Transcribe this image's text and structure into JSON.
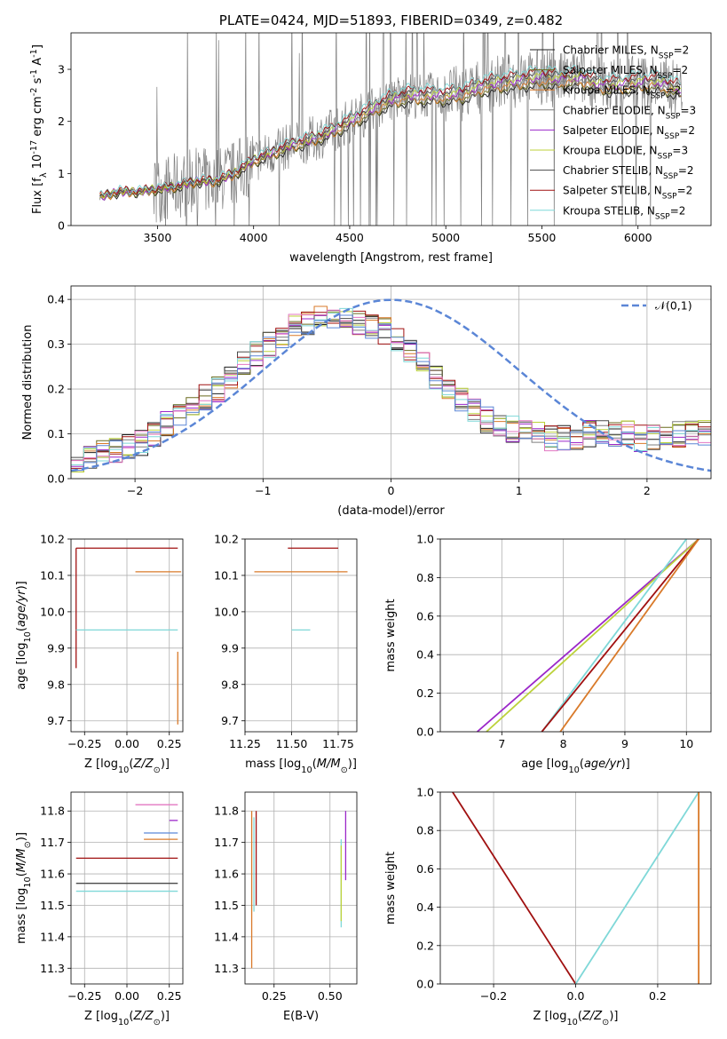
{
  "chart_data": [
    {
      "type": "line",
      "id": "spectrum",
      "title": "PLATE=0424, MJD=51893, FIBERID=0349, z=0.482",
      "xlabel": "wavelength [Angstrom, rest frame]",
      "ylabel": "Flux [f$_\\lambda$ 10$^{-17}$ erg cm$^{-2}$ s$^{-1}$ A$^{-1}$]",
      "xlim": [
        3050,
        6380
      ],
      "ylim": [
        0,
        3.7
      ],
      "xticks": [
        3500,
        4000,
        4500,
        5000,
        5500,
        6000
      ],
      "yticks": [
        0,
        1,
        2,
        3
      ],
      "data_color": "#808080",
      "data_x_range": [
        3200,
        6230
      ],
      "continuum_points": [
        [
          3200,
          0.55
        ],
        [
          3300,
          0.65
        ],
        [
          3400,
          0.65
        ],
        [
          3500,
          0.7
        ],
        [
          3600,
          0.75
        ],
        [
          3700,
          0.85
        ],
        [
          3800,
          0.85
        ],
        [
          3900,
          1.0
        ],
        [
          4000,
          1.25
        ],
        [
          4100,
          1.4
        ],
        [
          4200,
          1.55
        ],
        [
          4300,
          1.65
        ],
        [
          4400,
          1.8
        ],
        [
          4500,
          2.0
        ],
        [
          4600,
          2.2
        ],
        [
          4700,
          2.4
        ],
        [
          4800,
          2.5
        ],
        [
          4900,
          2.5
        ],
        [
          5000,
          2.5
        ],
        [
          5100,
          2.55
        ],
        [
          5200,
          2.7
        ],
        [
          5300,
          2.75
        ],
        [
          5400,
          2.8
        ],
        [
          5500,
          2.85
        ],
        [
          5600,
          2.8
        ],
        [
          5700,
          2.85
        ],
        [
          5800,
          2.7
        ],
        [
          5900,
          2.7
        ],
        [
          6000,
          2.75
        ],
        [
          6100,
          2.75
        ],
        [
          6230,
          2.6
        ]
      ],
      "legend_position": "upper right",
      "series": [
        {
          "name": "Chabrier MILES, N$_{SSP}$=2",
          "color": "#1f1f1f"
        },
        {
          "name": "Salpeter MILES, N$_{SSP}$=2",
          "color": "#6b6b1f"
        },
        {
          "name": "Kroupa MILES, N$_{SSP}$=2",
          "color": "#d97a2a"
        },
        {
          "name": "Chabrier ELODIE, N$_{SSP}$=3",
          "color": "#7f7f7f"
        },
        {
          "name": "Salpeter ELODIE, N$_{SSP}$=2",
          "color": "#9b27c9"
        },
        {
          "name": "Kroupa ELODIE, N$_{SSP}$=3",
          "color": "#bcd23a"
        },
        {
          "name": "Chabrier STELIB, N$_{SSP}$=2",
          "color": "#4a4a4a"
        },
        {
          "name": "Salpeter STELIB, N$_{SSP}$=2",
          "color": "#a01010"
        },
        {
          "name": "Kroupa STELIB, N$_{SSP}$=2",
          "color": "#7fd8d8"
        }
      ]
    },
    {
      "type": "histogram",
      "id": "residuals",
      "xlabel": "(data-model)/error",
      "ylabel": "Normed distribution",
      "xlim": [
        -2.5,
        2.5
      ],
      "ylim": [
        0,
        0.43
      ],
      "xticks": [
        -2,
        -1,
        0,
        1,
        2
      ],
      "yticks": [
        0.0,
        0.1,
        0.2,
        0.3,
        0.4
      ],
      "grid": true,
      "legend_position": "upper right",
      "reference_curve": {
        "name": "$\\mathcal{N}(0,1)$",
        "color": "#5b86d6",
        "style": "dashed"
      },
      "bin_width": 0.1,
      "bin_start": -2.5,
      "approx_series_envelope": [
        0.04,
        0.05,
        0.06,
        0.06,
        0.07,
        0.08,
        0.1,
        0.12,
        0.14,
        0.16,
        0.18,
        0.2,
        0.23,
        0.26,
        0.28,
        0.3,
        0.32,
        0.34,
        0.35,
        0.36,
        0.36,
        0.36,
        0.35,
        0.34,
        0.33,
        0.31,
        0.28,
        0.26,
        0.23,
        0.2,
        0.18,
        0.15,
        0.13,
        0.12,
        0.11,
        0.1,
        0.1,
        0.09,
        0.09,
        0.09,
        0.1,
        0.1,
        0.1,
        0.1,
        0.09,
        0.09,
        0.1,
        0.1,
        0.1,
        0.1
      ]
    },
    {
      "type": "errorbar",
      "id": "age-vs-Z",
      "xlabel": "Z [log$_{10}$($Z/Z_\\odot$)]",
      "ylabel": "age  [log$_{10}$($age/yr$)]",
      "xlim": [
        -0.33,
        0.33
      ],
      "ylim": [
        9.67,
        10.2
      ],
      "xticks": [
        -0.25,
        0.0,
        0.25
      ],
      "yticks": [
        9.7,
        9.8,
        9.9,
        10.0,
        10.1,
        10.2
      ],
      "grid": true,
      "points": [
        {
          "x": -0.3,
          "y": 10.175,
          "xerr": [
            0,
            0.6
          ],
          "yerr": [
            0.33,
            0
          ],
          "color": "#a01010"
        },
        {
          "x": 0.05,
          "y": 10.11,
          "xerr": [
            0,
            0.27
          ],
          "color": "#d97a2a"
        },
        {
          "x": -0.3,
          "y": 9.95,
          "xerr": [
            0,
            0.6
          ],
          "color": "#7fd8d8"
        },
        {
          "x": 0.3,
          "y": 9.89,
          "yerr": [
            0.2,
            0
          ],
          "color": "#d97a2a"
        }
      ]
    },
    {
      "type": "errorbar",
      "id": "age-vs-mass",
      "xlabel": "mass [log$_{10}$($M/M_\\odot$)]",
      "ylabel": "",
      "xlim": [
        11.25,
        11.85
      ],
      "ylim": [
        9.67,
        10.2
      ],
      "xticks": [
        11.25,
        11.5,
        11.75
      ],
      "yticks": [
        9.7,
        9.8,
        9.9,
        10.0,
        10.1,
        10.2
      ],
      "grid": true,
      "points": [
        {
          "x": 11.55,
          "y": 10.175,
          "xerr": [
            0.07,
            0.2
          ],
          "color": "#a01010"
        },
        {
          "x": 11.3,
          "y": 10.11,
          "xerr": [
            0,
            0.5
          ],
          "color": "#d97a2a"
        },
        {
          "x": 11.55,
          "y": 9.95,
          "xerr": [
            0.05,
            0.05
          ],
          "color": "#7fd8d8"
        }
      ]
    },
    {
      "type": "line",
      "id": "cumulative-age",
      "xlabel": "age  [log$_{10}$($age/yr$)]",
      "ylabel": "mass weight",
      "xlim": [
        6.0,
        10.4
      ],
      "ylim": [
        0,
        1
      ],
      "xticks": [
        7,
        8,
        9,
        10
      ],
      "yticks": [
        0.0,
        0.2,
        0.4,
        0.6,
        0.8,
        1.0
      ],
      "grid": true,
      "series": [
        {
          "color": "#9b27c9",
          "x": [
            6.6,
            10.2
          ],
          "y": [
            0,
            1
          ]
        },
        {
          "color": "#bcd23a",
          "x": [
            6.75,
            10.2
          ],
          "y": [
            0,
            1
          ]
        },
        {
          "color": "#7fd8d8",
          "x": [
            7.65,
            10.0
          ],
          "y": [
            0,
            1
          ]
        },
        {
          "color": "#a01010",
          "x": [
            7.65,
            10.2
          ],
          "y": [
            0,
            1
          ]
        },
        {
          "color": "#d97a2a",
          "x": [
            7.95,
            10.2
          ],
          "y": [
            0,
            1
          ]
        }
      ]
    },
    {
      "type": "errorbar",
      "id": "mass-vs-Z",
      "xlabel": "Z [log$_{10}$($Z/Z_\\odot$)]",
      "ylabel": "mass [log$_{10}$($M/M_\\odot$)]",
      "xlim": [
        -0.33,
        0.33
      ],
      "ylim": [
        11.25,
        11.86
      ],
      "xticks": [
        -0.25,
        0.0,
        0.25
      ],
      "yticks": [
        11.3,
        11.4,
        11.5,
        11.6,
        11.7,
        11.8
      ],
      "grid": true,
      "points": [
        {
          "x": 0.05,
          "y": 11.82,
          "xerr": [
            0,
            0.25
          ],
          "color": "#e377c2"
        },
        {
          "x": 0.25,
          "y": 11.77,
          "xerr": [
            0,
            0.05
          ],
          "color": "#9b27c9"
        },
        {
          "x": 0.1,
          "y": 11.73,
          "xerr": [
            0,
            0.2
          ],
          "color": "#5b86d6"
        },
        {
          "x": 0.1,
          "y": 11.71,
          "xerr": [
            0,
            0.2
          ],
          "color": "#d97a2a"
        },
        {
          "x": -0.3,
          "y": 11.65,
          "xerr": [
            0,
            0.6
          ],
          "color": "#a01010"
        },
        {
          "x": -0.3,
          "y": 11.57,
          "xerr": [
            0,
            0.6
          ],
          "color": "#4a4a4a"
        },
        {
          "x": -0.3,
          "y": 11.545,
          "xerr": [
            0,
            0.6
          ],
          "color": "#7fd8d8"
        }
      ]
    },
    {
      "type": "errorbar",
      "id": "mass-vs-EBV",
      "xlabel": "E(B-V)",
      "ylabel": "",
      "xlim": [
        0.12,
        0.62
      ],
      "ylim": [
        11.25,
        11.86
      ],
      "xticks": [
        0.25,
        0.5
      ],
      "yticks": [
        11.3,
        11.4,
        11.5,
        11.6,
        11.7,
        11.8
      ],
      "grid": true,
      "points": [
        {
          "x": 0.15,
          "y": 11.6,
          "yerr": [
            0.3,
            0.2
          ],
          "color": "#d97a2a"
        },
        {
          "x": 0.17,
          "y": 11.65,
          "yerr": [
            0.15,
            0.15
          ],
          "color": "#a01010"
        },
        {
          "x": 0.16,
          "y": 11.63,
          "yerr": [
            0.15,
            0.15
          ],
          "color": "#7fd8d8"
        },
        {
          "x": 0.55,
          "y": 11.57,
          "yerr": [
            0.14,
            0.14
          ],
          "color": "#7fd8d8"
        },
        {
          "x": 0.55,
          "y": 11.57,
          "yerr": [
            0.12,
            0.12
          ],
          "color": "#bcd23a"
        },
        {
          "x": 0.57,
          "y": 11.68,
          "yerr": [
            0.1,
            0.12
          ],
          "color": "#9b27c9"
        }
      ]
    },
    {
      "type": "line",
      "id": "cumulative-Z",
      "xlabel": "Z [log$_{10}$($Z/Z_\\odot$)]",
      "ylabel": "mass weight",
      "xlim": [
        -0.33,
        0.33
      ],
      "ylim": [
        0,
        1
      ],
      "xticks": [
        -0.2,
        0.0,
        0.2
      ],
      "yticks": [
        0.0,
        0.2,
        0.4,
        0.6,
        0.8,
        1.0
      ],
      "grid": true,
      "series": [
        {
          "color": "#a01010",
          "x": [
            -0.3,
            0.0
          ],
          "y": [
            1,
            0
          ]
        },
        {
          "color": "#7fd8d8",
          "x": [
            0.0,
            0.3
          ],
          "y": [
            0,
            1
          ]
        },
        {
          "color": "#d97a2a",
          "x": [
            0.3,
            0.3
          ],
          "y": [
            0,
            1
          ]
        }
      ]
    }
  ]
}
